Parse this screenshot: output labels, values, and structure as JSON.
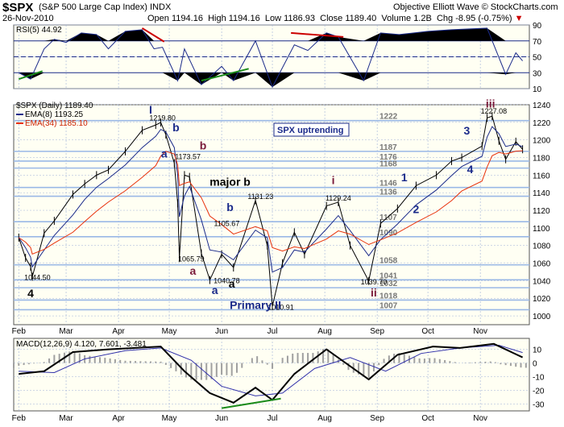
{
  "header": {
    "symbol": "$SPX",
    "description": "(S&P 500 Large Cap Index)",
    "exchange": "INDX",
    "brand": "Objective Elliott Wave",
    "copyright": "© StockCharts.com",
    "date": "26-Nov-2010",
    "open_label": "Open",
    "open": "1194.16",
    "high_label": "High",
    "high": "1194.16",
    "low_label": "Low",
    "low": "1186.93",
    "close_label": "Close",
    "close": "1189.40",
    "volume_label": "Volume",
    "volume": "1.2B",
    "chg_label": "Chg",
    "chg": "-8.95 (-0.75%)",
    "chg_arrow": "▼",
    "colors": {
      "up": "#0000cc",
      "down": "#cc0000"
    }
  },
  "chart_data": {
    "type": "line",
    "price": {
      "legend": "$SPX (Daily) 1189.40",
      "ema8_legend": "EMA(8) 1193.25",
      "ema34_legend": "EMA(34) 1185.10",
      "ylim": [
        990,
        1240
      ],
      "ticks": [
        "1000",
        "1020",
        "1040",
        "1060",
        "1080",
        "1100",
        "1120",
        "1140",
        "1160",
        "1180",
        "1200",
        "1220",
        "1240"
      ],
      "series": [
        {
          "date": "2010-02-01",
          "value": 1089
        },
        {
          "date": "2010-02-05",
          "value": 1066
        },
        {
          "date": "2010-02-08",
          "value": 1056
        },
        {
          "date": "2010-02-09",
          "value": 1044.5
        },
        {
          "date": "2010-02-16",
          "value": 1094
        },
        {
          "date": "2010-02-22",
          "value": 1108
        },
        {
          "date": "2010-03-05",
          "value": 1138
        },
        {
          "date": "2010-03-12",
          "value": 1150
        },
        {
          "date": "2010-03-19",
          "value": 1160
        },
        {
          "date": "2010-03-26",
          "value": 1166
        },
        {
          "date": "2010-04-05",
          "value": 1187
        },
        {
          "date": "2010-04-15",
          "value": 1211
        },
        {
          "date": "2010-04-23",
          "value": 1217
        },
        {
          "date": "2010-04-26",
          "value": 1219.8
        },
        {
          "date": "2010-04-29",
          "value": 1206
        },
        {
          "date": "2010-05-04",
          "value": 1173.57
        },
        {
          "date": "2010-05-06",
          "value": 1128
        },
        {
          "date": "2010-05-07",
          "value": 1065.79
        },
        {
          "date": "2010-05-10",
          "value": 1160
        },
        {
          "date": "2010-05-13",
          "value": 1158
        },
        {
          "date": "2010-05-20",
          "value": 1071
        },
        {
          "date": "2010-05-25",
          "value": 1040.78
        },
        {
          "date": "2010-06-01",
          "value": 1070
        },
        {
          "date": "2010-06-08",
          "value": 1055
        },
        {
          "date": "2010-06-21",
          "value": 1131.23
        },
        {
          "date": "2010-06-28",
          "value": 1080
        },
        {
          "date": "2010-07-01",
          "value": 1010.91
        },
        {
          "date": "2010-07-07",
          "value": 1060
        },
        {
          "date": "2010-07-14",
          "value": 1095
        },
        {
          "date": "2010-07-20",
          "value": 1070
        },
        {
          "date": "2010-08-02",
          "value": 1125
        },
        {
          "date": "2010-08-09",
          "value": 1129.24
        },
        {
          "date": "2010-08-16",
          "value": 1080
        },
        {
          "date": "2010-08-27",
          "value": 1039.7
        },
        {
          "date": "2010-09-03",
          "value": 1105
        },
        {
          "date": "2010-09-13",
          "value": 1122
        },
        {
          "date": "2010-09-24",
          "value": 1148
        },
        {
          "date": "2010-10-06",
          "value": 1160
        },
        {
          "date": "2010-10-15",
          "value": 1176
        },
        {
          "date": "2010-10-21",
          "value": 1180
        },
        {
          "date": "2010-11-02",
          "value": 1193
        },
        {
          "date": "2010-11-05",
          "value": 1225
        },
        {
          "date": "2010-11-08",
          "value": 1227.08
        },
        {
          "date": "2010-11-12",
          "value": 1199
        },
        {
          "date": "2010-11-16",
          "value": 1178
        },
        {
          "date": "2010-11-22",
          "value": 1198
        },
        {
          "date": "2010-11-26",
          "value": 1189.4
        }
      ],
      "pivot_levels": [
        {
          "value": "1222",
          "y": 1222
        },
        {
          "value": "1187",
          "y": 1187
        },
        {
          "value": "1176",
          "y": 1176
        },
        {
          "value": "1168",
          "y": 1168
        },
        {
          "value": "1146",
          "y": 1146
        },
        {
          "value": "1136",
          "y": 1136
        },
        {
          "value": "1107",
          "y": 1107
        },
        {
          "value": "1090",
          "y": 1090
        },
        {
          "value": "1058",
          "y": 1058
        },
        {
          "value": "1041",
          "y": 1041
        },
        {
          "value": "1032",
          "y": 1032
        },
        {
          "value": "1018",
          "y": 1018
        },
        {
          "value": "1007",
          "y": 1007
        }
      ],
      "callout": "SPX uptrending",
      "price_labels": [
        {
          "text": "1219.80",
          "date": "2010-04-27",
          "y": 1222
        },
        {
          "text": "1173.57",
          "date": "2010-05-12",
          "y": 1178
        },
        {
          "text": "1065.79",
          "date": "2010-05-14",
          "y": 1062
        },
        {
          "text": "1044.50",
          "date": "2010-02-12",
          "y": 1041
        },
        {
          "text": "1131.23",
          "date": "2010-06-24",
          "y": 1133
        },
        {
          "text": "1105.67",
          "date": "2010-06-04",
          "y": 1102
        },
        {
          "text": "1040.78",
          "date": "2010-06-04",
          "y": 1037
        },
        {
          "text": "1010.91",
          "date": "2010-07-06",
          "y": 1007
        },
        {
          "text": "1129.24",
          "date": "2010-08-09",
          "y": 1131
        },
        {
          "text": "1039.70",
          "date": "2010-08-30",
          "y": 1036
        },
        {
          "text": "1227.08",
          "date": "2010-11-09",
          "y": 1230
        }
      ],
      "wave_labels": [
        {
          "text": "I",
          "date": "2010-04-20",
          "y": 1230,
          "color": "#1a2a8a"
        },
        {
          "text": "b",
          "date": "2010-05-05",
          "y": 1210,
          "color": "#1a2a8a"
        },
        {
          "text": "a",
          "date": "2010-04-28",
          "y": 1180,
          "color": "#1a2a8a"
        },
        {
          "text": "b",
          "date": "2010-05-21",
          "y": 1189,
          "color": "#7a1a3a"
        },
        {
          "text": "major b",
          "date": "2010-06-06",
          "y": 1148,
          "color": "#000000"
        },
        {
          "text": "b",
          "date": "2010-06-06",
          "y": 1119,
          "color": "#1a2a8a"
        },
        {
          "text": "a",
          "date": "2010-05-15",
          "y": 1047,
          "color": "#7a1a3a"
        },
        {
          "text": "a",
          "date": "2010-06-07",
          "y": 1032,
          "color": "#000000"
        },
        {
          "text": "a",
          "date": "2010-05-28",
          "y": 1025,
          "color": "#1a2a8a"
        },
        {
          "text": "Primary II",
          "date": "2010-06-21",
          "y": 1008,
          "color": "#1a2a8a"
        },
        {
          "text": "i",
          "date": "2010-08-06",
          "y": 1150,
          "color": "#7a1a3a"
        },
        {
          "text": "ii",
          "date": "2010-08-30",
          "y": 1022,
          "color": "#7a1a3a"
        },
        {
          "text": "1",
          "date": "2010-09-17",
          "y": 1153,
          "color": "#1a2a8a"
        },
        {
          "text": "2",
          "date": "2010-09-24",
          "y": 1117,
          "color": "#1a2a8a"
        },
        {
          "text": "3",
          "date": "2010-10-24",
          "y": 1206,
          "color": "#1a2a8a"
        },
        {
          "text": "4",
          "date": "2010-10-26",
          "y": 1162,
          "color": "#1a2a8a"
        },
        {
          "text": "iii",
          "date": "2010-11-07",
          "y": 1237,
          "color": "#7a1a3a"
        },
        {
          "text": "4",
          "date": "2010-02-08",
          "y": 1021,
          "color": "#000000"
        }
      ]
    },
    "rsi": {
      "legend": "RSI(5) 44.92",
      "ylim": [
        10,
        90
      ],
      "ticks": [
        "10",
        "30",
        "50",
        "70",
        "90"
      ],
      "values": [
        {
          "date": "2010-02-01",
          "value": 30
        },
        {
          "date": "2010-02-08",
          "value": 22
        },
        {
          "date": "2010-02-16",
          "value": 60
        },
        {
          "date": "2010-02-22",
          "value": 72
        },
        {
          "date": "2010-03-01",
          "value": 68
        },
        {
          "date": "2010-03-10",
          "value": 80
        },
        {
          "date": "2010-03-19",
          "value": 78
        },
        {
          "date": "2010-03-26",
          "value": 60
        },
        {
          "date": "2010-04-05",
          "value": 82
        },
        {
          "date": "2010-04-15",
          "value": 84
        },
        {
          "date": "2010-04-22",
          "value": 60
        },
        {
          "date": "2010-04-27",
          "value": 62
        },
        {
          "date": "2010-05-06",
          "value": 20
        },
        {
          "date": "2010-05-10",
          "value": 60
        },
        {
          "date": "2010-05-20",
          "value": 15
        },
        {
          "date": "2010-06-01",
          "value": 38
        },
        {
          "date": "2010-06-08",
          "value": 20
        },
        {
          "date": "2010-06-21",
          "value": 70
        },
        {
          "date": "2010-07-01",
          "value": 12
        },
        {
          "date": "2010-07-14",
          "value": 65
        },
        {
          "date": "2010-07-22",
          "value": 58
        },
        {
          "date": "2010-08-02",
          "value": 80
        },
        {
          "date": "2010-08-09",
          "value": 75
        },
        {
          "date": "2010-08-24",
          "value": 20
        },
        {
          "date": "2010-09-03",
          "value": 80
        },
        {
          "date": "2010-09-14",
          "value": 78
        },
        {
          "date": "2010-10-01",
          "value": 82
        },
        {
          "date": "2010-10-15",
          "value": 84
        },
        {
          "date": "2010-11-05",
          "value": 86
        },
        {
          "date": "2010-11-16",
          "value": 28
        },
        {
          "date": "2010-11-22",
          "value": 55
        },
        {
          "date": "2010-11-26",
          "value": 44.92
        }
      ],
      "trendlines": [
        {
          "from": {
            "date": "2010-02-01",
            "value": 22
          },
          "to": {
            "date": "2010-02-15",
            "value": 32
          },
          "color": "#1a8a1a"
        },
        {
          "from": {
            "date": "2010-04-15",
            "value": 86
          },
          "to": {
            "date": "2010-04-28",
            "value": 69
          },
          "color": "#cc0000"
        },
        {
          "from": {
            "date": "2010-05-20",
            "value": 20
          },
          "to": {
            "date": "2010-06-17",
            "value": 35
          },
          "color": "#1a8a1a"
        },
        {
          "from": {
            "date": "2010-07-12",
            "value": 80
          },
          "to": {
            "date": "2010-08-12",
            "value": 75
          },
          "color": "#cc0000"
        }
      ]
    },
    "macd": {
      "legend": "MACD(12,26,9) 4.120, 7.601, -3.481",
      "ylim": [
        -35,
        18
      ],
      "ticks": [
        "10",
        "0",
        "-10",
        "-20",
        "-30"
      ],
      "macd_line": [
        {
          "date": "2010-02-01",
          "value": -8
        },
        {
          "date": "2010-02-16",
          "value": -6
        },
        {
          "date": "2010-03-05",
          "value": 8
        },
        {
          "date": "2010-03-26",
          "value": 10
        },
        {
          "date": "2010-04-26",
          "value": 12
        },
        {
          "date": "2010-05-10",
          "value": -6
        },
        {
          "date": "2010-05-25",
          "value": -22
        },
        {
          "date": "2010-06-08",
          "value": -29
        },
        {
          "date": "2010-06-21",
          "value": -18
        },
        {
          "date": "2010-07-01",
          "value": -27
        },
        {
          "date": "2010-07-14",
          "value": -8
        },
        {
          "date": "2010-08-02",
          "value": 10
        },
        {
          "date": "2010-08-27",
          "value": -12
        },
        {
          "date": "2010-09-13",
          "value": 6
        },
        {
          "date": "2010-10-04",
          "value": 12
        },
        {
          "date": "2010-10-20",
          "value": 11
        },
        {
          "date": "2010-11-09",
          "value": 14
        },
        {
          "date": "2010-11-26",
          "value": 4.12
        }
      ],
      "signal_line": [
        {
          "date": "2010-02-01",
          "value": -6
        },
        {
          "date": "2010-02-22",
          "value": -7
        },
        {
          "date": "2010-03-12",
          "value": 3
        },
        {
          "date": "2010-04-05",
          "value": 9
        },
        {
          "date": "2010-04-26",
          "value": 11
        },
        {
          "date": "2010-05-14",
          "value": 2
        },
        {
          "date": "2010-06-01",
          "value": -17
        },
        {
          "date": "2010-06-21",
          "value": -24
        },
        {
          "date": "2010-07-07",
          "value": -22
        },
        {
          "date": "2010-07-26",
          "value": -4
        },
        {
          "date": "2010-08-16",
          "value": 4
        },
        {
          "date": "2010-09-06",
          "value": -6
        },
        {
          "date": "2010-09-27",
          "value": 7
        },
        {
          "date": "2010-10-20",
          "value": 11
        },
        {
          "date": "2010-11-12",
          "value": 13
        },
        {
          "date": "2010-11-26",
          "value": 7.601
        }
      ],
      "trendline": {
        "from": {
          "date": "2010-06-01",
          "value": -33
        },
        "to": {
          "date": "2010-07-06",
          "value": -26
        },
        "color": "#1a8a1a"
      }
    },
    "months": [
      "Feb",
      "Mar",
      "Apr",
      "May",
      "Jun",
      "Jul",
      "Aug",
      "Sep",
      "Oct",
      "Nov"
    ],
    "month_dates": [
      "2010-02-01",
      "2010-03-01",
      "2010-04-01",
      "2010-05-01",
      "2010-06-01",
      "2010-07-01",
      "2010-08-01",
      "2010-09-01",
      "2010-10-01",
      "2010-11-01"
    ],
    "xlim": [
      "2010-01-29",
      "2010-11-30"
    ],
    "colors": {
      "bars": "#000000",
      "ema8": "#1a2a8a",
      "ema34": "#e8320c",
      "grid": "#9fb0d8",
      "panel_bg": "#fffff3",
      "pivots": "#9ab8e6",
      "rsi_fill": "#000000",
      "macd": "#000000",
      "signal": "#3030aa",
      "hist": "#a0a0a0"
    }
  }
}
